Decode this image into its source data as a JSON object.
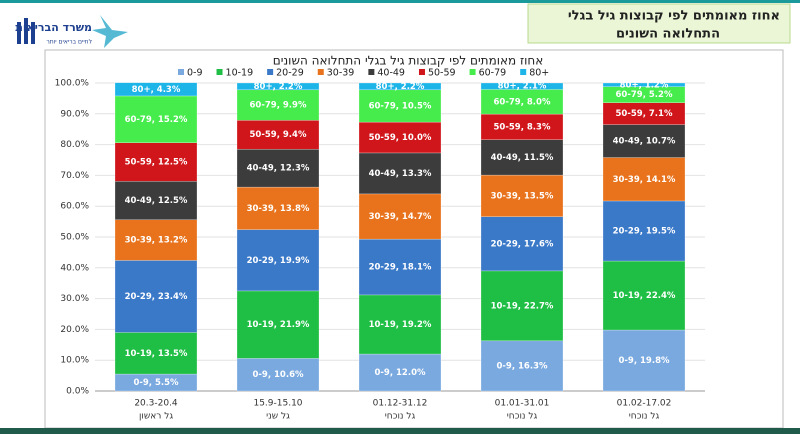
{
  "header": {
    "title_lines": [
      "אחוז מאומתים לפי קבוצות גיל בגלי",
      "התחלואה השונים"
    ],
    "logo": "משרד הבריאות",
    "logo_tagline": "לחיים בריאים יותר"
  },
  "chart_data": {
    "type": "stacked_bar",
    "title": "אחוז מאומתים לפי קבוצות גיל בגלי התחלואה השונים",
    "categories": [
      "20.3-20.4",
      "15.9-15.10",
      "01.12-31.12",
      "01.01-31.01",
      "01.02-17.02"
    ],
    "category_sublabels": [
      "גל ראשון",
      "גל שני",
      "גל נוכחי",
      "גל נוכחי",
      "גל נוכחי"
    ],
    "ylim": [
      0,
      100
    ],
    "yticks": [
      {
        "value": 0,
        "label": "0.0%"
      },
      {
        "value": 10,
        "label": "10.0%"
      },
      {
        "value": 20,
        "label": "20.0%"
      },
      {
        "value": 30,
        "label": "30.0%"
      },
      {
        "value": 40,
        "label": "40.0%"
      },
      {
        "value": 50,
        "label": "50.0%"
      },
      {
        "value": 60,
        "label": "60.0%"
      },
      {
        "value": 70,
        "label": "70.0%"
      },
      {
        "value": 80,
        "label": "80.0%"
      },
      {
        "value": 90,
        "label": "90.0%"
      },
      {
        "value": 100,
        "label": "100.0%"
      }
    ],
    "legend": "top",
    "series": [
      {
        "name": "0-9",
        "color": "#7aa9e0",
        "values": [
          5.5,
          10.6,
          12.0,
          16.3,
          19.8
        ],
        "value_labels": [
          "0-9, 5.5%",
          "0-9, 10.6%",
          "0-9, 12.0%",
          "0-9, 16.3%",
          "0-9, 19.8%"
        ]
      },
      {
        "name": "10-19",
        "color": "#1fbf45",
        "values": [
          13.5,
          21.9,
          19.2,
          22.7,
          22.4
        ],
        "value_labels": [
          "10-19, 13.5%",
          "10-19, 21.9%",
          "10-19, 19.2%",
          "10-19, 22.7%",
          "10-19, 22.4%"
        ]
      },
      {
        "name": "20-29",
        "color": "#3a78c8",
        "values": [
          23.4,
          19.9,
          18.1,
          17.6,
          19.5
        ],
        "value_labels": [
          "20-29, 23.4%",
          "20-29, 19.9%",
          "20-29, 18.1%",
          "20-29, 17.6%",
          "20-29, 19.5%"
        ]
      },
      {
        "name": "30-39",
        "color": "#e8731c",
        "values": [
          13.2,
          13.8,
          14.7,
          13.5,
          14.1
        ],
        "value_labels": [
          "30-39, 13.2%",
          "30-39, 13.8%",
          "30-39, 14.7%",
          "30-39, 13.5%",
          "30-39, 14.1%"
        ]
      },
      {
        "name": "40-49",
        "color": "#3c3c3c",
        "values": [
          12.5,
          12.3,
          13.3,
          11.5,
          10.7
        ],
        "value_labels": [
          "40-49, 12.5%",
          "40-49, 12.3%",
          "40-49, 13.3%",
          "40-49, 11.5%",
          "40-49, 10.7%"
        ]
      },
      {
        "name": "50-59",
        "color": "#d0161a",
        "values": [
          12.5,
          9.4,
          10.0,
          8.3,
          7.1
        ],
        "value_labels": [
          "50-59, 12.5%",
          "50-59, 9.4%",
          "50-59, 10.0%",
          "50-59, 8.3%",
          "50-59, 7.1%"
        ]
      },
      {
        "name": "60-79",
        "color": "#46ec4c",
        "values": [
          15.2,
          9.9,
          10.5,
          8.0,
          5.2
        ],
        "value_labels": [
          "60-79, 15.2%",
          "60-79, 9.9%",
          "60-79, 10.5%",
          "60-79, 8.0%",
          "60-79, 5.2%"
        ]
      },
      {
        "name": "80+",
        "color": "#1db4e8",
        "values": [
          4.3,
          2.2,
          2.2,
          2.1,
          1.2
        ],
        "value_labels": [
          "80+, 4.3%",
          "80+, 2.2%",
          "80+, 2.2%",
          "80+, 2.1%",
          "80+, 1.2%"
        ]
      }
    ]
  }
}
